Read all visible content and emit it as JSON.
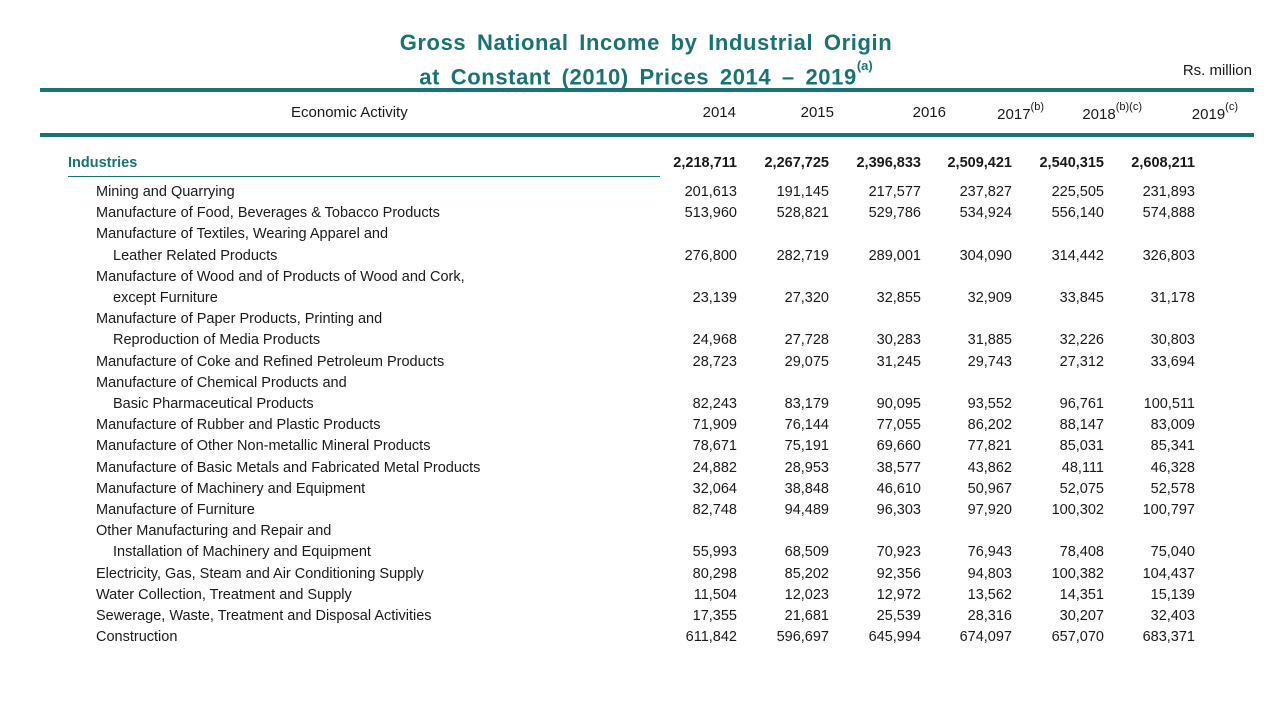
{
  "title": {
    "line1": "Gross National Income by Industrial Origin",
    "line2": "at Constant (2010) Prices 2014 – 2019",
    "line2_sup": "(a)"
  },
  "unit": "Rs. million",
  "header": {
    "activity": "Economic Activity",
    "columns": [
      {
        "label": "2014",
        "sup": ""
      },
      {
        "label": "2015",
        "sup": ""
      },
      {
        "label": "2016",
        "sup": ""
      },
      {
        "label": "2017",
        "sup": "(b)"
      },
      {
        "label": "2018",
        "sup": "(b)(c)"
      },
      {
        "label": "2019",
        "sup": "(c)"
      }
    ]
  },
  "industries": {
    "label": "Industries",
    "values": [
      "2,218,711",
      "2,267,725",
      "2,396,833",
      "2,509,421",
      "2,540,315",
      "2,608,211"
    ]
  },
  "rows": [
    {
      "lines": [
        "Mining and Quarrying"
      ],
      "values": [
        "201,613",
        "191,145",
        "217,577",
        "237,827",
        "225,505",
        "231,893"
      ]
    },
    {
      "lines": [
        "Manufacture of Food, Beverages & Tobacco Products"
      ],
      "values": [
        "513,960",
        "528,821",
        "529,786",
        "534,924",
        "556,140",
        "574,888"
      ]
    },
    {
      "lines": [
        "Manufacture of Textiles, Wearing Apparel and",
        "Leather Related Products"
      ],
      "values": [
        "276,800",
        "282,719",
        "289,001",
        "304,090",
        "314,442",
        "326,803"
      ]
    },
    {
      "lines": [
        "Manufacture of Wood and of Products of Wood and Cork,",
        "except Furniture"
      ],
      "values": [
        "23,139",
        "27,320",
        "32,855",
        "32,909",
        "33,845",
        "31,178"
      ]
    },
    {
      "lines": [
        "Manufacture of  Paper Products, Printing and",
        "Reproduction of Media Products"
      ],
      "values": [
        "24,968",
        "27,728",
        "30,283",
        "31,885",
        "32,226",
        "30,803"
      ]
    },
    {
      "lines": [
        "Manufacture of Coke and Refined Petroleum Products"
      ],
      "values": [
        "28,723",
        "29,075",
        "31,245",
        "29,743",
        "27,312",
        "33,694"
      ]
    },
    {
      "lines": [
        "Manufacture of Chemical  Products and",
        "Basic Pharmaceutical  Products"
      ],
      "values": [
        "82,243",
        "83,179",
        "90,095",
        "93,552",
        "96,761",
        "100,511"
      ]
    },
    {
      "lines": [
        "Manufacture of Rubber and Plastic Products"
      ],
      "values": [
        "71,909",
        "76,144",
        "77,055",
        "86,202",
        "88,147",
        "83,009"
      ]
    },
    {
      "lines": [
        "Manufacture of Other Non-metallic Mineral Products"
      ],
      "values": [
        "78,671",
        "75,191",
        "69,660",
        "77,821",
        "85,031",
        "85,341"
      ]
    },
    {
      "lines": [
        "Manufacture of Basic Metals and Fabricated Metal Products"
      ],
      "values": [
        "24,882",
        "28,953",
        "38,577",
        "43,862",
        "48,111",
        "46,328"
      ]
    },
    {
      "lines": [
        "Manufacture of Machinery and Equipment"
      ],
      "values": [
        "32,064",
        "38,848",
        "46,610",
        "50,967",
        "52,075",
        "52,578"
      ]
    },
    {
      "lines": [
        "Manufacture of Furniture"
      ],
      "values": [
        "82,748",
        "94,489",
        "96,303",
        "97,920",
        "100,302",
        "100,797"
      ]
    },
    {
      "lines": [
        "Other Manufacturing and Repair and",
        "Installation of Machinery and Equipment"
      ],
      "values": [
        "55,993",
        "68,509",
        "70,923",
        "76,943",
        "78,408",
        "75,040"
      ]
    },
    {
      "lines": [
        "Electricity, Gas, Steam and Air Conditioning Supply"
      ],
      "values": [
        "80,298",
        "85,202",
        "92,356",
        "94,803",
        "100,382",
        "104,437"
      ]
    },
    {
      "lines": [
        "Water Collection, Treatment and Supply"
      ],
      "values": [
        "11,504",
        "12,023",
        "12,972",
        "13,562",
        "14,351",
        "15,139"
      ]
    },
    {
      "lines": [
        "Sewerage, Waste, Treatment and Disposal Activities"
      ],
      "values": [
        "17,355",
        "21,681",
        "25,539",
        "28,316",
        "30,207",
        "32,403"
      ]
    },
    {
      "lines": [
        "Construction"
      ],
      "values": [
        "611,842",
        "596,697",
        "645,994",
        "674,097",
        "657,070",
        "683,371"
      ]
    }
  ]
}
